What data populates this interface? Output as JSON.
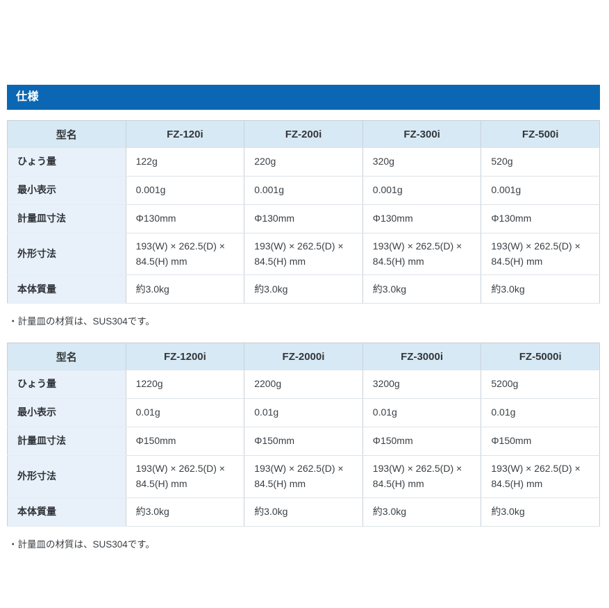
{
  "section": {
    "title": "仕様"
  },
  "colors": {
    "section_bar_bg": "#0b67b3",
    "section_bar_text": "#ffffff",
    "table_header_bg": "#d8e9f6",
    "row_label_bg": "#e8f1f9",
    "cell_bg": "#ffffff",
    "border_vertical": "#c8d1d9",
    "border_horizontal": "#dce3e9",
    "text": "#3a3f44"
  },
  "tables": [
    {
      "columns": [
        "型名",
        "FZ-120i",
        "FZ-200i",
        "FZ-300i",
        "FZ-500i"
      ],
      "rows": [
        {
          "label": "ひょう量",
          "values": [
            "122g",
            "220g",
            "320g",
            "520g"
          ]
        },
        {
          "label": "最小表示",
          "values": [
            "0.001g",
            "0.001g",
            "0.001g",
            "0.001g"
          ]
        },
        {
          "label": "計量皿寸法",
          "values": [
            "Φ130mm",
            "Φ130mm",
            "Φ130mm",
            "Φ130mm"
          ]
        },
        {
          "label": "外形寸法",
          "values": [
            "193(W) × 262.5(D) × 84.5(H) mm",
            "193(W) × 262.5(D) × 84.5(H) mm",
            "193(W) × 262.5(D) × 84.5(H) mm",
            "193(W) × 262.5(D) × 84.5(H) mm"
          ]
        },
        {
          "label": "本体質量",
          "values": [
            "約3.0kg",
            "約3.0kg",
            "約3.0kg",
            "約3.0kg"
          ]
        }
      ],
      "note": "・計量皿の材質は、SUS304です。"
    },
    {
      "columns": [
        "型名",
        "FZ-1200i",
        "FZ-2000i",
        "FZ-3000i",
        "FZ-5000i"
      ],
      "rows": [
        {
          "label": "ひょう量",
          "values": [
            "1220g",
            "2200g",
            "3200g",
            "5200g"
          ]
        },
        {
          "label": "最小表示",
          "values": [
            "0.01g",
            "0.01g",
            "0.01g",
            "0.01g"
          ]
        },
        {
          "label": "計量皿寸法",
          "values": [
            "Φ150mm",
            "Φ150mm",
            "Φ150mm",
            "Φ150mm"
          ]
        },
        {
          "label": "外形寸法",
          "values": [
            "193(W) × 262.5(D) × 84.5(H) mm",
            "193(W) × 262.5(D) × 84.5(H) mm",
            "193(W) × 262.5(D) × 84.5(H) mm",
            "193(W) × 262.5(D) × 84.5(H) mm"
          ]
        },
        {
          "label": "本体質量",
          "values": [
            "約3.0kg",
            "約3.0kg",
            "約3.0kg",
            "約3.0kg"
          ]
        }
      ],
      "note": "・計量皿の材質は、SUS304です。"
    }
  ]
}
